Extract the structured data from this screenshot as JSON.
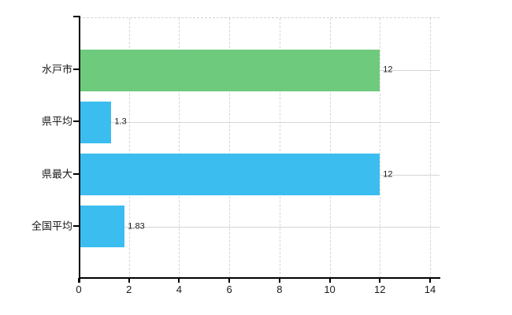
{
  "chart_data": {
    "type": "bar",
    "orientation": "horizontal",
    "title": "",
    "xlabel": "",
    "ylabel": "",
    "categories": [
      "水戸市",
      "県平均",
      "県最大",
      "全国平均"
    ],
    "values": [
      12,
      1.3,
      12,
      1.83
    ],
    "value_labels": [
      "12",
      "1.3",
      "12",
      "1.83"
    ],
    "bar_colors": [
      "#6ecb7e",
      "#3cbdf0",
      "#3cbdf0",
      "#3cbdf0"
    ],
    "x_ticks": [
      0,
      2,
      4,
      6,
      8,
      10,
      12,
      14
    ],
    "x_tick_labels": [
      "0",
      "2",
      "4",
      "6",
      "8",
      "10",
      "12",
      "14"
    ],
    "xlim": [
      0,
      14
    ],
    "grid": "on",
    "legend": "none",
    "colors": {
      "axis": "#000000",
      "gridline": "#d6d6d6",
      "text": "#1a1a1a",
      "background": "#ffffff"
    }
  }
}
